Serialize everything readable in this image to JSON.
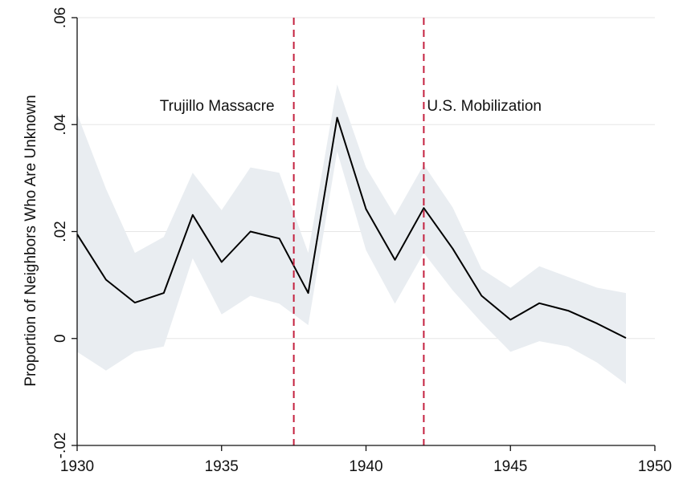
{
  "chart_data": {
    "type": "line",
    "title": "",
    "xlabel": "",
    "ylabel": "Proportion of Neighbors Who Are Unknown",
    "xlim": [
      1930,
      1950
    ],
    "ylim": [
      -0.02,
      0.06
    ],
    "x_ticks": [
      1930,
      1935,
      1940,
      1945,
      1950
    ],
    "x_tick_labels": [
      "1930",
      "1935",
      "1940",
      "1945",
      "1950"
    ],
    "y_ticks": [
      -0.02,
      0,
      0.02,
      0.04,
      0.06
    ],
    "y_tick_labels": [
      "-.02",
      "0",
      ".02",
      ".04",
      ".06"
    ],
    "grid": "horizontal",
    "x": [
      1930,
      1931,
      1932,
      1933,
      1934,
      1935,
      1936,
      1937,
      1938,
      1939,
      1940,
      1941,
      1942,
      1943,
      1944,
      1945,
      1946,
      1947,
      1948,
      1949
    ],
    "series": [
      {
        "values": [
          0.0195,
          0.011,
          0.0067,
          0.0085,
          0.0231,
          0.0143,
          0.02,
          0.0187,
          0.0085,
          0.0413,
          0.0242,
          0.0147,
          0.0244,
          0.0168,
          0.008,
          0.0035,
          0.0066,
          0.0052,
          0.0028,
          0.0001
        ],
        "ci_upper": [
          0.042,
          0.028,
          0.016,
          0.019,
          0.031,
          0.024,
          0.032,
          0.031,
          0.016,
          0.0475,
          0.032,
          0.023,
          0.0325,
          0.0245,
          0.013,
          0.0095,
          0.0135,
          0.0115,
          0.0095,
          0.0085
        ],
        "ci_lower": [
          -0.0025,
          -0.006,
          -0.0025,
          -0.0015,
          0.015,
          0.0045,
          0.008,
          0.0065,
          0.0025,
          0.035,
          0.0165,
          0.0065,
          0.016,
          0.009,
          0.003,
          -0.0025,
          -0.0005,
          -0.0015,
          -0.0045,
          -0.0085
        ]
      }
    ],
    "colors": {
      "line": "#000000",
      "ci_band": "#e9edf1",
      "event_line": "#c4213f",
      "grid": "#e6e6e6",
      "axis": "#111111"
    },
    "events": [
      {
        "x": 1937.5,
        "label": "Trujillo Massacre",
        "label_side": "left"
      },
      {
        "x": 1942,
        "label": "U.S. Mobilization",
        "label_side": "right"
      }
    ]
  }
}
